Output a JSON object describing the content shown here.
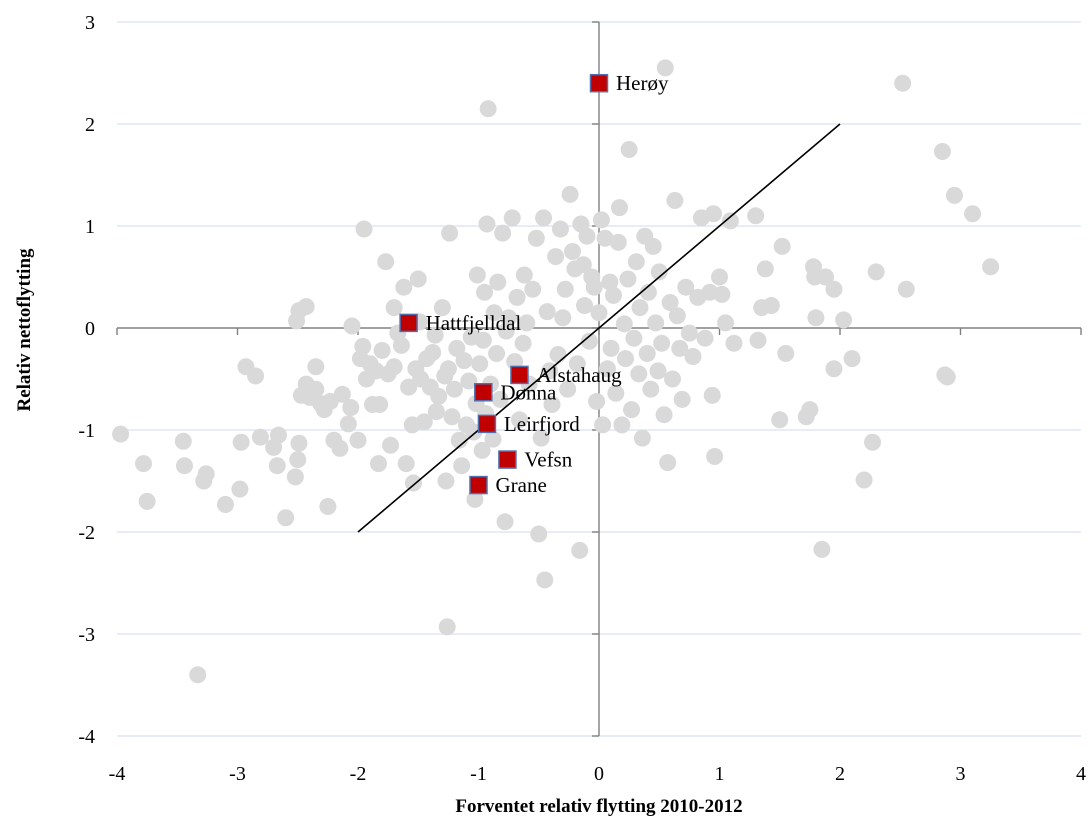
{
  "chart_data": {
    "type": "scatter",
    "title": "",
    "xlabel": "Forventet relativ flytting 2010-2012",
    "ylabel": "Relativ nettoflytting",
    "xlim": [
      -4,
      4
    ],
    "ylim": [
      -4,
      3
    ],
    "xticks": [
      "-4",
      "-3",
      "-2",
      "-1",
      "0",
      "1",
      "2",
      "3",
      "4"
    ],
    "yticks": [
      "3",
      "2",
      "1",
      "0",
      "-1",
      "-2",
      "-3",
      "-4"
    ],
    "grid": "horizontal",
    "legend": "none",
    "colors": {
      "background_points": "#d9d9d9",
      "highlight_fill": "#c00000",
      "highlight_border": "#4f6fb0",
      "reference_line": "#000000",
      "axes": "#808080",
      "grid": "#d9e1f2"
    },
    "reference_line": {
      "x": [
        -2,
        2
      ],
      "y": [
        -2,
        2
      ]
    },
    "highlighted": [
      {
        "label": "Herøy",
        "x": 0.0,
        "y": 2.4
      },
      {
        "label": "Hattfjelldal",
        "x": -1.58,
        "y": 0.05
      },
      {
        "label": "Alstahaug",
        "x": -0.66,
        "y": -0.46
      },
      {
        "label": "Dønna",
        "x": -0.96,
        "y": -0.63
      },
      {
        "label": "Leirfjord",
        "x": -0.93,
        "y": -0.94
      },
      {
        "label": "Vefsn",
        "x": -0.76,
        "y": -1.29
      },
      {
        "label": "Grane",
        "x": -1.0,
        "y": -1.54
      }
    ],
    "points": [
      [
        -3.97,
        -1.04
      ],
      [
        -3.78,
        -1.33
      ],
      [
        -3.75,
        -1.7
      ],
      [
        -3.45,
        -1.11
      ],
      [
        -3.44,
        -1.35
      ],
      [
        -3.28,
        -1.5
      ],
      [
        -3.26,
        -1.43
      ],
      [
        -3.1,
        -1.73
      ],
      [
        -3.33,
        -3.4
      ],
      [
        -2.98,
        -1.58
      ],
      [
        -2.97,
        -1.12
      ],
      [
        -2.93,
        -0.38
      ],
      [
        -2.85,
        -0.47
      ],
      [
        -2.81,
        -1.07
      ],
      [
        -2.7,
        -1.17
      ],
      [
        -2.67,
        -1.35
      ],
      [
        -2.66,
        -1.05
      ],
      [
        -2.6,
        -1.86
      ],
      [
        -2.52,
        -1.46
      ],
      [
        -2.5,
        -1.29
      ],
      [
        -2.49,
        -1.13
      ],
      [
        -2.47,
        -0.66
      ],
      [
        -2.51,
        0.07
      ],
      [
        -2.49,
        0.17
      ],
      [
        -2.43,
        0.21
      ],
      [
        -2.43,
        -0.55
      ],
      [
        -2.4,
        -0.68
      ],
      [
        -2.35,
        -0.6
      ],
      [
        -2.35,
        -0.38
      ],
      [
        -2.31,
        -0.74
      ],
      [
        -2.28,
        -0.8
      ],
      [
        -2.25,
        -1.75
      ],
      [
        -2.23,
        -0.72
      ],
      [
        -2.2,
        -1.1
      ],
      [
        -2.15,
        -1.18
      ],
      [
        -2.13,
        -0.65
      ],
      [
        -2.08,
        -0.94
      ],
      [
        -2.06,
        -0.78
      ],
      [
        -2.05,
        0.02
      ],
      [
        -2.0,
        -1.1
      ],
      [
        -1.98,
        -0.3
      ],
      [
        -1.96,
        -0.18
      ],
      [
        -1.95,
        0.97
      ],
      [
        -1.93,
        -0.5
      ],
      [
        -1.9,
        -0.35
      ],
      [
        -1.88,
        -0.75
      ],
      [
        -1.85,
        -0.42
      ],
      [
        -1.83,
        -1.33
      ],
      [
        -1.82,
        -0.75
      ],
      [
        -1.8,
        -0.22
      ],
      [
        -1.77,
        0.65
      ],
      [
        -1.75,
        -0.45
      ],
      [
        -1.73,
        -1.15
      ],
      [
        -1.7,
        -0.38
      ],
      [
        -1.7,
        0.2
      ],
      [
        -1.67,
        -0.05
      ],
      [
        -1.64,
        -0.17
      ],
      [
        -1.62,
        0.4
      ],
      [
        -1.6,
        -1.33
      ],
      [
        -1.58,
        -0.58
      ],
      [
        -1.55,
        -0.95
      ],
      [
        -1.54,
        -1.52
      ],
      [
        -1.52,
        -0.4
      ],
      [
        -1.5,
        0.48
      ],
      [
        -1.49,
        0.06
      ],
      [
        -1.48,
        -0.5
      ],
      [
        -1.45,
        -0.92
      ],
      [
        -1.43,
        -0.3
      ],
      [
        -1.4,
        -0.58
      ],
      [
        -1.38,
        -0.24
      ],
      [
        -1.36,
        -0.07
      ],
      [
        -1.35,
        -0.82
      ],
      [
        -1.33,
        -0.67
      ],
      [
        -1.3,
        0.2
      ],
      [
        -1.28,
        -0.47
      ],
      [
        -1.27,
        -1.5
      ],
      [
        -1.26,
        -2.93
      ],
      [
        -1.25,
        -0.4
      ],
      [
        -1.24,
        0.93
      ],
      [
        -1.22,
        -0.87
      ],
      [
        -1.2,
        -0.6
      ],
      [
        -1.18,
        -0.2
      ],
      [
        -1.16,
        -1.1
      ],
      [
        -1.14,
        -1.35
      ],
      [
        -1.12,
        -0.32
      ],
      [
        -1.1,
        -0.95
      ],
      [
        -1.08,
        -0.52
      ],
      [
        -1.06,
        -0.09
      ],
      [
        -1.04,
        -1.02
      ],
      [
        -1.03,
        -1.68
      ],
      [
        -1.02,
        -0.74
      ],
      [
        -1.01,
        0.52
      ],
      [
        -0.99,
        -0.35
      ],
      [
        -0.97,
        -1.2
      ],
      [
        -0.96,
        -0.12
      ],
      [
        -0.95,
        0.35
      ],
      [
        -0.94,
        -0.84
      ],
      [
        -0.93,
        1.02
      ],
      [
        -0.92,
        2.15
      ],
      [
        -0.9,
        -0.55
      ],
      [
        -0.88,
        -1.09
      ],
      [
        -0.87,
        0.15
      ],
      [
        -0.85,
        -0.25
      ],
      [
        -0.84,
        0.45
      ],
      [
        -0.82,
        -0.7
      ],
      [
        -0.8,
        0.93
      ],
      [
        -0.78,
        -1.9
      ],
      [
        -0.77,
        -0.03
      ],
      [
        -0.75,
        0.1
      ],
      [
        -0.72,
        1.08
      ],
      [
        -0.7,
        -0.33
      ],
      [
        -0.68,
        0.3
      ],
      [
        -0.66,
        -0.9
      ],
      [
        -0.63,
        -0.15
      ],
      [
        -0.62,
        0.52
      ],
      [
        -0.6,
        0.05
      ],
      [
        -0.58,
        -0.55
      ],
      [
        -0.55,
        0.38
      ],
      [
        -0.52,
        0.88
      ],
      [
        -0.5,
        -2.02
      ],
      [
        -0.48,
        -1.08
      ],
      [
        -0.46,
        1.08
      ],
      [
        -0.45,
        -2.47
      ],
      [
        -0.43,
        0.16
      ],
      [
        -0.41,
        -0.42
      ],
      [
        -0.39,
        -0.75
      ],
      [
        -0.36,
        0.7
      ],
      [
        -0.34,
        -0.26
      ],
      [
        -0.32,
        0.97
      ],
      [
        -0.3,
        0.1
      ],
      [
        -0.28,
        0.38
      ],
      [
        -0.26,
        -0.6
      ],
      [
        -0.24,
        1.31
      ],
      [
        -0.22,
        0.75
      ],
      [
        -0.2,
        0.58
      ],
      [
        -0.18,
        -0.35
      ],
      [
        -0.16,
        -2.18
      ],
      [
        -0.15,
        1.02
      ],
      [
        -0.13,
        0.62
      ],
      [
        -0.12,
        0.22
      ],
      [
        -0.1,
        0.9
      ],
      [
        -0.08,
        -0.13
      ],
      [
        -0.06,
        0.5
      ],
      [
        -0.04,
        0.4
      ],
      [
        -0.02,
        -0.72
      ],
      [
        0.0,
        0.15
      ],
      [
        0.02,
        1.06
      ],
      [
        0.03,
        -0.95
      ],
      [
        0.05,
        0.88
      ],
      [
        0.07,
        -0.4
      ],
      [
        0.09,
        0.45
      ],
      [
        0.1,
        -0.2
      ],
      [
        0.12,
        0.32
      ],
      [
        0.14,
        -0.64
      ],
      [
        0.16,
        0.84
      ],
      [
        0.17,
        1.18
      ],
      [
        0.19,
        -0.95
      ],
      [
        0.21,
        0.04
      ],
      [
        0.22,
        -0.3
      ],
      [
        0.24,
        0.48
      ],
      [
        0.25,
        1.75
      ],
      [
        0.27,
        -0.8
      ],
      [
        0.29,
        -0.1
      ],
      [
        0.31,
        0.65
      ],
      [
        0.33,
        -0.45
      ],
      [
        0.34,
        0.2
      ],
      [
        0.36,
        -1.08
      ],
      [
        0.38,
        0.9
      ],
      [
        0.4,
        -0.25
      ],
      [
        0.41,
        0.35
      ],
      [
        0.43,
        -0.6
      ],
      [
        0.45,
        0.8
      ],
      [
        0.47,
        0.05
      ],
      [
        0.49,
        -0.42
      ],
      [
        0.5,
        0.55
      ],
      [
        0.52,
        -0.15
      ],
      [
        0.54,
        -0.85
      ],
      [
        0.55,
        2.55
      ],
      [
        0.57,
        -1.32
      ],
      [
        0.59,
        0.25
      ],
      [
        0.61,
        -0.5
      ],
      [
        0.63,
        1.25
      ],
      [
        0.65,
        0.12
      ],
      [
        0.67,
        -0.2
      ],
      [
        0.69,
        -0.7
      ],
      [
        0.72,
        0.4
      ],
      [
        0.75,
        -0.05
      ],
      [
        0.78,
        -0.28
      ],
      [
        0.82,
        0.3
      ],
      [
        0.85,
        1.08
      ],
      [
        0.88,
        -0.1
      ],
      [
        0.92,
        0.35
      ],
      [
        0.94,
        -0.66
      ],
      [
        0.95,
        1.12
      ],
      [
        0.96,
        -1.26
      ],
      [
        1.0,
        0.5
      ],
      [
        1.02,
        0.33
      ],
      [
        1.05,
        0.05
      ],
      [
        1.09,
        1.05
      ],
      [
        1.12,
        -0.15
      ],
      [
        1.3,
        1.1
      ],
      [
        1.32,
        -0.12
      ],
      [
        1.35,
        0.2
      ],
      [
        1.38,
        0.58
      ],
      [
        1.43,
        0.22
      ],
      [
        1.5,
        -0.9
      ],
      [
        1.52,
        0.8
      ],
      [
        1.55,
        -0.25
      ],
      [
        1.72,
        -0.87
      ],
      [
        1.75,
        -0.8
      ],
      [
        1.78,
        0.6
      ],
      [
        1.79,
        0.5
      ],
      [
        1.8,
        0.1
      ],
      [
        1.85,
        -2.17
      ],
      [
        1.88,
        0.5
      ],
      [
        1.95,
        0.38
      ],
      [
        1.95,
        -0.4
      ],
      [
        2.03,
        0.08
      ],
      [
        2.1,
        -0.3
      ],
      [
        2.2,
        -1.49
      ],
      [
        2.27,
        -1.12
      ],
      [
        2.3,
        0.55
      ],
      [
        2.52,
        2.4
      ],
      [
        2.55,
        0.38
      ],
      [
        2.85,
        1.73
      ],
      [
        2.87,
        -0.46
      ],
      [
        2.89,
        -0.48
      ],
      [
        2.95,
        1.3
      ],
      [
        3.1,
        1.12
      ],
      [
        3.25,
        0.6
      ]
    ]
  }
}
